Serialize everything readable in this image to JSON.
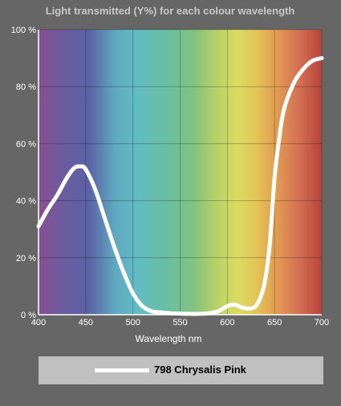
{
  "chart_data": {
    "type": "line",
    "title": "Light transmitted (Y%) for each colour wavelength",
    "xlabel": "Wavelength nm",
    "ylabel": "",
    "xlim": [
      400,
      700
    ],
    "ylim": [
      0,
      100
    ],
    "x_ticks": [
      400,
      450,
      500,
      550,
      600,
      650,
      700
    ],
    "x_tick_labels": [
      "400",
      "450",
      "500",
      "550",
      "600",
      "650",
      "700"
    ],
    "y_ticks": [
      0,
      20,
      40,
      60,
      80,
      100
    ],
    "y_tick_labels": [
      "0 %",
      "20 %",
      "40 %",
      "60 %",
      "80 %",
      "100 %"
    ],
    "grid": true,
    "legend_position": "bottom",
    "background": "visible spectrum gradient",
    "series": [
      {
        "name": "798 Chrysalis Pink",
        "color": "#ffffff",
        "x": [
          400,
          410,
          420,
          430,
          438,
          445,
          450,
          460,
          470,
          480,
          490,
          500,
          510,
          520,
          530,
          540,
          550,
          560,
          570,
          580,
          590,
          600,
          605,
          610,
          615,
          620,
          625,
          630,
          635,
          640,
          645,
          650,
          655,
          660,
          670,
          680,
          690,
          700
        ],
        "y": [
          31,
          37,
          42,
          48,
          51.5,
          52,
          51,
          44,
          34,
          24,
          15,
          7.5,
          3,
          1.2,
          0.8,
          0.5,
          0.4,
          0.3,
          0.3,
          0.5,
          1.2,
          3,
          3.5,
          3.3,
          2.6,
          2.2,
          2.2,
          3,
          6,
          12,
          25,
          48,
          62,
          72,
          81,
          86,
          89,
          90
        ]
      }
    ]
  }
}
